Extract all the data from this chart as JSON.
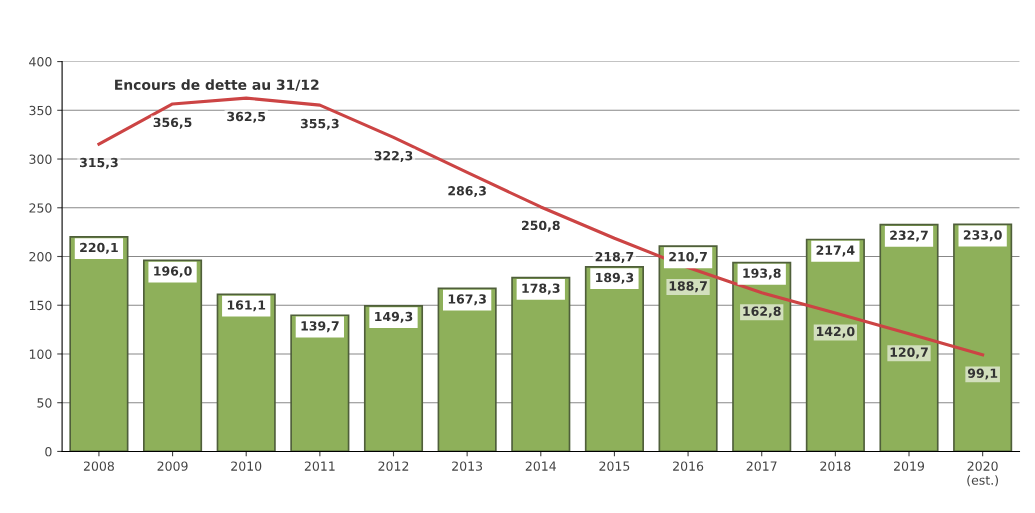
{
  "chart_data": {
    "type": "bar",
    "categories": [
      "2008",
      "2009",
      "2010",
      "2011",
      "2012",
      "2013",
      "2014",
      "2015",
      "2016",
      "2017",
      "2018",
      "2019",
      "2020\n(est.)"
    ],
    "series": [
      {
        "color": "#8eb05a",
        "values": [
          220.1,
          196.0,
          161.1,
          139.7,
          149.3,
          167.3,
          178.3,
          189.3,
          210.7,
          193.8,
          217.4,
          232.7,
          233.0
        ]
      },
      {
        "type": "line",
        "name": "Encours de dette au 31/12",
        "color": "#cc4444",
        "values": [
          315.3,
          356.5,
          362.5,
          355.3,
          322.3,
          286.3,
          250.8,
          218.7,
          188.7,
          162.8,
          142.0,
          120.7,
          99.1
        ]
      }
    ],
    "value_labels": [
      [
        "220,1",
        "196,0",
        "161,1",
        "139,7",
        "149,3",
        "167,3",
        "178,3",
        "189,3",
        "210,7",
        "193,8",
        "217,4",
        "232,7",
        "233,0"
      ],
      [
        "315,3",
        "356,5",
        "362,5",
        "355,3",
        "322,3",
        "286,3",
        "250,8",
        "218,7",
        "188,7",
        "162,8",
        "142,0",
        "120,7",
        "99,1"
      ]
    ],
    "ylim": [
      0,
      400
    ],
    "yticks": [
      0,
      50,
      100,
      150,
      200,
      250,
      300,
      350,
      400
    ],
    "grid": "y",
    "legend": false,
    "marker": "none",
    "line_style": "solid"
  }
}
